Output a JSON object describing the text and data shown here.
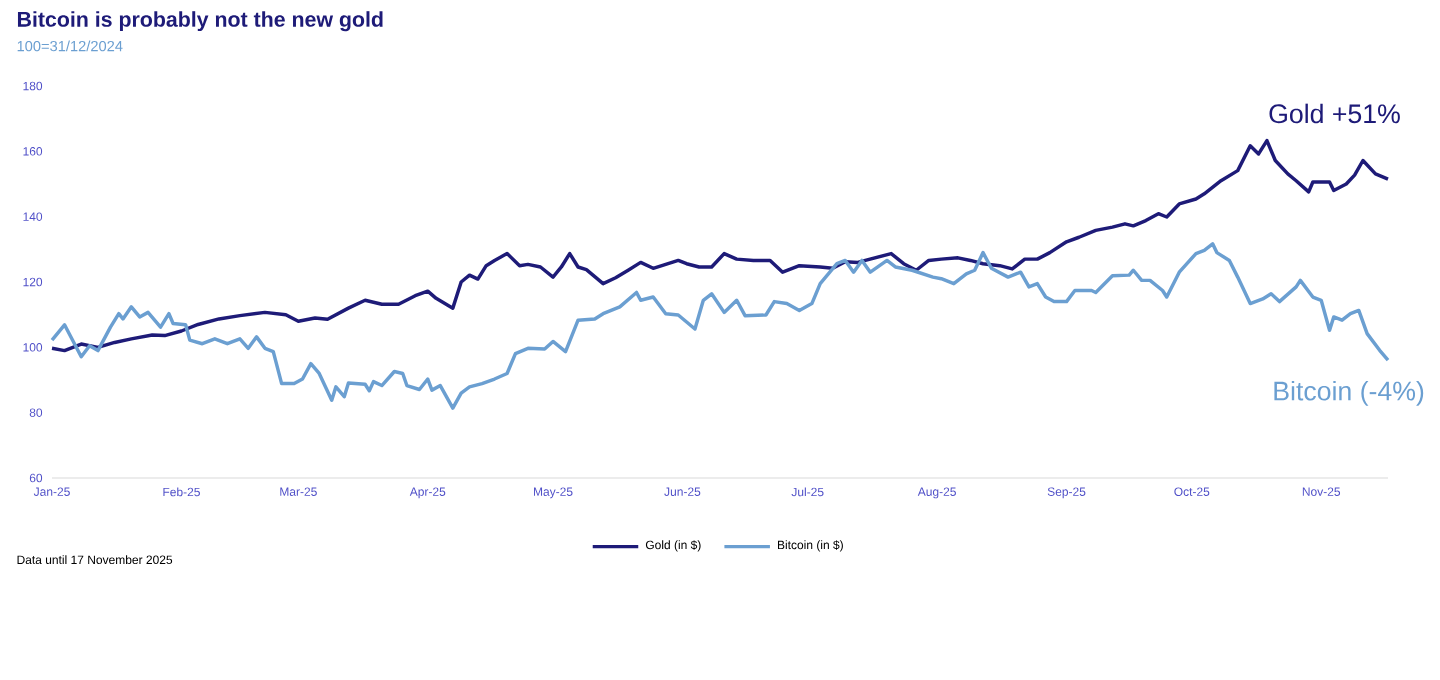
{
  "chart_data": {
    "type": "line",
    "title": "Bitcoin is probably not the new gold",
    "subtitle": "100=31/12/2024",
    "xlim": [
      "2025-01-01",
      "2025-11-17"
    ],
    "ylim": [
      60,
      180
    ],
    "xticks": [
      {
        "value": "2025-01-01",
        "label": "Jan-25"
      },
      {
        "value": "2025-02-01",
        "label": "Feb-25"
      },
      {
        "value": "2025-03-01",
        "label": "Mar-25"
      },
      {
        "value": "2025-04-01",
        "label": "Apr-25"
      },
      {
        "value": "2025-05-01",
        "label": "May-25"
      },
      {
        "value": "2025-06-01",
        "label": "Jun-25"
      },
      {
        "value": "2025-07-01",
        "label": "Jul-25"
      },
      {
        "value": "2025-08-01",
        "label": "Aug-25"
      },
      {
        "value": "2025-09-01",
        "label": "Sep-25"
      },
      {
        "value": "2025-10-01",
        "label": "Oct-25"
      },
      {
        "value": "2025-11-01",
        "label": "Nov-25"
      }
    ],
    "yticks": [
      60,
      80,
      100,
      120,
      140,
      160,
      180
    ],
    "grid": false,
    "legend": "bottom",
    "series": [
      {
        "name": "Gold (in $)",
        "color": "#1e1b78",
        "x": [
          "2025-01-01",
          "2025-01-04",
          "2025-01-08",
          "2025-01-12",
          "2025-01-16",
          "2025-01-20",
          "2025-01-25",
          "2025-01-28",
          "2025-02-01",
          "2025-02-05",
          "2025-02-10",
          "2025-02-15",
          "2025-02-21",
          "2025-02-26",
          "2025-03-01",
          "2025-03-05",
          "2025-03-08",
          "2025-03-13",
          "2025-03-17",
          "2025-03-21",
          "2025-03-25",
          "2025-03-29",
          "2025-04-01",
          "2025-04-03",
          "2025-04-07",
          "2025-04-09",
          "2025-04-11",
          "2025-04-13",
          "2025-04-15",
          "2025-04-17",
          "2025-04-20",
          "2025-04-23",
          "2025-04-25",
          "2025-04-28",
          "2025-05-01",
          "2025-05-03",
          "2025-05-05",
          "2025-05-07",
          "2025-05-09",
          "2025-05-13",
          "2025-05-16",
          "2025-05-19",
          "2025-05-22",
          "2025-05-25",
          "2025-05-31",
          "2025-06-02",
          "2025-06-05",
          "2025-06-08",
          "2025-06-11",
          "2025-06-14",
          "2025-06-18",
          "2025-06-22",
          "2025-06-25",
          "2025-06-29",
          "2025-07-04",
          "2025-07-07",
          "2025-07-10",
          "2025-07-13",
          "2025-07-21",
          "2025-07-24",
          "2025-07-27",
          "2025-07-30",
          "2025-08-02",
          "2025-08-06",
          "2025-08-09",
          "2025-08-12",
          "2025-08-16",
          "2025-08-19",
          "2025-08-22",
          "2025-08-25",
          "2025-08-28",
          "2025-09-01",
          "2025-09-04",
          "2025-09-08",
          "2025-09-12",
          "2025-09-15",
          "2025-09-17",
          "2025-09-20",
          "2025-09-23",
          "2025-09-25",
          "2025-09-28",
          "2025-10-02",
          "2025-10-04",
          "2025-10-08",
          "2025-10-12",
          "2025-10-15",
          "2025-10-17",
          "2025-10-19",
          "2025-10-21",
          "2025-10-24",
          "2025-10-26",
          "2025-10-29",
          "2025-10-30",
          "2025-11-03",
          "2025-11-04",
          "2025-11-07",
          "2025-11-09",
          "2025-11-11",
          "2025-11-14",
          "2025-11-17"
        ],
        "values": [
          99.7,
          99,
          101,
          100,
          101.5,
          102.6,
          103.8,
          103.6,
          105,
          107,
          108.7,
          109.7,
          110.7,
          110,
          108,
          109,
          108.6,
          112,
          114.4,
          113.2,
          113.2,
          115.8,
          117.2,
          115,
          112,
          120,
          122.1,
          120.9,
          125,
          126.6,
          128.7,
          125,
          125.4,
          124.6,
          121.5,
          124.6,
          128.7,
          124.6,
          123.8,
          119.5,
          121.3,
          123.6,
          126,
          124.2,
          126.6,
          125.6,
          124.6,
          124.6,
          128.7,
          127,
          126.6,
          126.6,
          123,
          125,
          124.6,
          124.2,
          126.2,
          126,
          128.7,
          125.6,
          123.6,
          126.6,
          127,
          127.4,
          126.6,
          125.6,
          125,
          124,
          127,
          127,
          129,
          132.3,
          133.7,
          135.8,
          136.8,
          137.8,
          137.2,
          138.8,
          140.9,
          139.9,
          143.9,
          145.4,
          147,
          151,
          154.1,
          161.7,
          159.2,
          163.3,
          157.2,
          153.1,
          151,
          147.6,
          150.6,
          150.6,
          148,
          150,
          152.7,
          157.2,
          153.1,
          151.5
        ]
      },
      {
        "name": "Bitcoin (in $)",
        "color": "#6b9fd1",
        "x": [
          "2025-01-01",
          "2025-01-04",
          "2025-01-08",
          "2025-01-10",
          "2025-01-12",
          "2025-01-15",
          "2025-01-17",
          "2025-01-18",
          "2025-01-20",
          "2025-01-22",
          "2025-01-24",
          "2025-01-27",
          "2025-01-29",
          "2025-01-30",
          "2025-02-02",
          "2025-02-03",
          "2025-02-06",
          "2025-02-09",
          "2025-02-12",
          "2025-02-15",
          "2025-02-17",
          "2025-02-19",
          "2025-02-21",
          "2025-02-23",
          "2025-02-25",
          "2025-02-28",
          "2025-03-02",
          "2025-03-04",
          "2025-03-06",
          "2025-03-09",
          "2025-03-10",
          "2025-03-12",
          "2025-03-13",
          "2025-03-17",
          "2025-03-18",
          "2025-03-19",
          "2025-03-21",
          "2025-03-24",
          "2025-03-26",
          "2025-03-27",
          "2025-03-30",
          "2025-04-01",
          "2025-04-02",
          "2025-04-04",
          "2025-04-07",
          "2025-04-09",
          "2025-04-11",
          "2025-04-14",
          "2025-04-17",
          "2025-04-20",
          "2025-04-22",
          "2025-04-25",
          "2025-04-29",
          "2025-05-01",
          "2025-05-04",
          "2025-05-07",
          "2025-05-11",
          "2025-05-13",
          "2025-05-17",
          "2025-05-21",
          "2025-05-22",
          "2025-05-25",
          "2025-05-28",
          "2025-05-31",
          "2025-06-04",
          "2025-06-06",
          "2025-06-08",
          "2025-06-11",
          "2025-06-14",
          "2025-06-16",
          "2025-06-21",
          "2025-06-23",
          "2025-06-26",
          "2025-06-29",
          "2025-07-02",
          "2025-07-04",
          "2025-07-08",
          "2025-07-10",
          "2025-07-12",
          "2025-07-14",
          "2025-07-16",
          "2025-07-20",
          "2025-07-22",
          "2025-07-26",
          "2025-07-31",
          "2025-08-02",
          "2025-08-05",
          "2025-08-08",
          "2025-08-10",
          "2025-08-12",
          "2025-08-14",
          "2025-08-18",
          "2025-08-21",
          "2025-08-23",
          "2025-08-25",
          "2025-08-27",
          "2025-08-29",
          "2025-09-01",
          "2025-09-03",
          "2025-09-07",
          "2025-09-08",
          "2025-09-12",
          "2025-09-16",
          "2025-09-17",
          "2025-09-19",
          "2025-09-21",
          "2025-09-24",
          "2025-09-25",
          "2025-09-28",
          "2025-10-02",
          "2025-10-04",
          "2025-10-06",
          "2025-10-07",
          "2025-10-10",
          "2025-10-12",
          "2025-10-15",
          "2025-10-18",
          "2025-10-20",
          "2025-10-22",
          "2025-10-26",
          "2025-10-27",
          "2025-10-30",
          "2025-11-01",
          "2025-11-03",
          "2025-11-04",
          "2025-11-06",
          "2025-11-08",
          "2025-11-10",
          "2025-11-12",
          "2025-11-15",
          "2025-11-17"
        ],
        "values": [
          102.2,
          106.9,
          97.1,
          100.5,
          99,
          106.2,
          110.3,
          108.7,
          112.4,
          109.3,
          110.7,
          106.2,
          110.3,
          107.3,
          106.9,
          102.2,
          101.1,
          102.6,
          101.1,
          102.6,
          99.7,
          103.2,
          99.7,
          98.7,
          88.9,
          88.9,
          90.3,
          95,
          92,
          83.8,
          87.9,
          84.9,
          89.1,
          88.7,
          86.7,
          89.5,
          88.3,
          92.6,
          92,
          88.3,
          87.1,
          90.3,
          86.9,
          88.3,
          81.4,
          86,
          87.9,
          88.9,
          90.3,
          92,
          98.1,
          99.7,
          99.5,
          101.8,
          98.7,
          108.3,
          108.7,
          110.3,
          112.4,
          116.8,
          114.4,
          115.4,
          110.3,
          109.9,
          105.6,
          114.4,
          116.4,
          110.7,
          114.4,
          109.7,
          109.9,
          114,
          113.4,
          111.3,
          113.4,
          119.5,
          125.6,
          126.6,
          123,
          126.6,
          123,
          126.6,
          124.6,
          123.6,
          121.5,
          121,
          119.5,
          122.5,
          123.6,
          129,
          124.2,
          121.5,
          123,
          118.5,
          119.5,
          115.4,
          114,
          114,
          117.4,
          117.4,
          116.8,
          121.9,
          122.1,
          123.6,
          120.5,
          120.5,
          117.4,
          115.4,
          123,
          128.7,
          129.7,
          131.7,
          129,
          126.6,
          121.5,
          113.4,
          114.8,
          116.4,
          114,
          118.5,
          120.5,
          115.4,
          114.4,
          105.2,
          109.3,
          108.3,
          110.3,
          111.3,
          104.2,
          99.1,
          96.1
        ]
      }
    ],
    "annotations": [
      "Gold +51%",
      "Bitcoin (-4%)",
      "Data until 17 November 2025"
    ]
  }
}
